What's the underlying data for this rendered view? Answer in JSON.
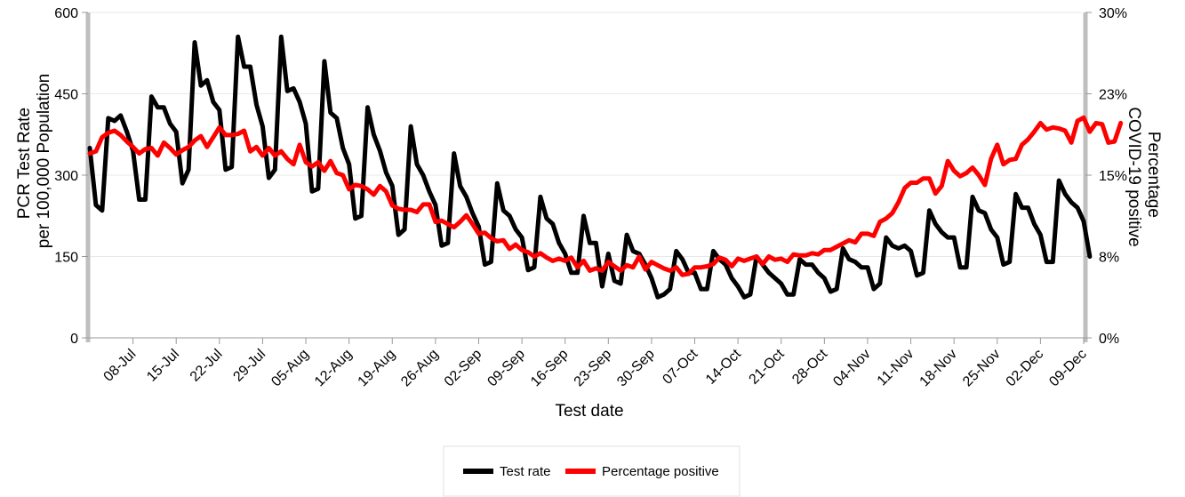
{
  "chart_data": {
    "type": "line",
    "title": "",
    "xlabel": "Test date",
    "ylabel_left": "PCR Test Rate per 100,000 Population",
    "ylabel_left_lines": [
      "PCR Test Rate",
      "per 100,000 Population"
    ],
    "ylabel_right": "Percentage COVID-19 positive",
    "ylabel_right_lines": [
      "Percentage",
      "COVID-19 positive"
    ],
    "ylim_left": [
      0,
      600
    ],
    "ylim_right": [
      0,
      30
    ],
    "yticks_left": [
      0,
      150,
      300,
      450,
      600
    ],
    "yticks_left_labels": [
      "0",
      "150",
      "300",
      "450",
      "600"
    ],
    "yticks_right": [
      0,
      7.5,
      15,
      22.5,
      30
    ],
    "yticks_right_labels": [
      "0%",
      "8%",
      "15%",
      "23%",
      "30%"
    ],
    "x_start": "2020-07-01",
    "x_end": "2020-12-09",
    "xticks": [
      "2020-07-08",
      "2020-07-15",
      "2020-07-22",
      "2020-07-29",
      "2020-08-05",
      "2020-08-12",
      "2020-08-19",
      "2020-08-26",
      "2020-09-02",
      "2020-09-09",
      "2020-09-16",
      "2020-09-23",
      "2020-09-30",
      "2020-10-07",
      "2020-10-14",
      "2020-10-21",
      "2020-10-28",
      "2020-11-04",
      "2020-11-11",
      "2020-11-18",
      "2020-11-25",
      "2020-12-02",
      "2020-12-09"
    ],
    "xtick_labels": [
      "08-Jul",
      "15-Jul",
      "22-Jul",
      "29-Jul",
      "05-Aug",
      "12-Aug",
      "19-Aug",
      "26-Aug",
      "02-Sep",
      "09-Sep",
      "16-Sep",
      "23-Sep",
      "30-Sep",
      "07-Oct",
      "14-Oct",
      "21-Oct",
      "28-Oct",
      "04-Nov",
      "11-Nov",
      "18-Nov",
      "25-Nov",
      "02-Dec",
      "09-Dec"
    ],
    "grid": "horizontal",
    "legend_position": "bottom",
    "series": [
      {
        "name": "Test rate",
        "axis": "left",
        "color": "#000000",
        "values": [
          350,
          245,
          235,
          405,
          400,
          410,
          380,
          345,
          255,
          255,
          445,
          425,
          425,
          395,
          380,
          285,
          310,
          545,
          465,
          475,
          435,
          420,
          310,
          315,
          555,
          500,
          500,
          430,
          390,
          295,
          310,
          555,
          455,
          460,
          435,
          395,
          270,
          275,
          510,
          415,
          405,
          350,
          320,
          220,
          225,
          425,
          375,
          345,
          305,
          280,
          190,
          200,
          390,
          320,
          300,
          270,
          245,
          170,
          175,
          340,
          280,
          260,
          230,
          205,
          135,
          140,
          285,
          235,
          225,
          200,
          185,
          125,
          130,
          260,
          220,
          210,
          175,
          155,
          120,
          120,
          225,
          175,
          175,
          95,
          155,
          105,
          100,
          190,
          160,
          155,
          135,
          110,
          75,
          80,
          90,
          160,
          145,
          120,
          120,
          90,
          90,
          160,
          145,
          135,
          110,
          95,
          75,
          80,
          150,
          135,
          120,
          110,
          100,
          80,
          80,
          145,
          135,
          135,
          120,
          110,
          85,
          90,
          165,
          145,
          140,
          130,
          130,
          90,
          100,
          185,
          170,
          165,
          170,
          160,
          115,
          120,
          235,
          210,
          195,
          185,
          185,
          130,
          130,
          260,
          235,
          230,
          200,
          185,
          135,
          140,
          265,
          240,
          240,
          210,
          190,
          140,
          140,
          290,
          265,
          250,
          240,
          215,
          150
        ]
      },
      {
        "name": "Percentage positive",
        "axis": "right",
        "color": "#ff0000",
        "values": [
          17.0,
          17.2,
          18.5,
          18.9,
          19.1,
          18.7,
          18.1,
          17.6,
          17.0,
          17.4,
          17.5,
          16.8,
          18.0,
          17.5,
          16.9,
          17.3,
          17.6,
          18.2,
          18.6,
          17.6,
          18.5,
          19.4,
          18.7,
          18.7,
          18.8,
          19.1,
          17.2,
          17.6,
          16.8,
          17.5,
          16.8,
          17.2,
          16.5,
          16.0,
          17.8,
          16.2,
          15.8,
          16.2,
          15.4,
          16.3,
          15.2,
          15.0,
          13.7,
          14.1,
          14.0,
          13.7,
          13.2,
          14.0,
          13.5,
          12.2,
          11.9,
          11.8,
          11.8,
          11.6,
          12.3,
          12.3,
          10.7,
          10.8,
          10.5,
          10.2,
          10.7,
          11.3,
          10.5,
          9.6,
          9.7,
          9.2,
          8.9,
          9.0,
          8.2,
          8.6,
          8.1,
          7.9,
          7.5,
          7.8,
          7.4,
          7.1,
          7.3,
          7.1,
          7.4,
          6.5,
          7.1,
          6.2,
          6.4,
          6.2,
          7.0,
          6.6,
          6.2,
          6.7,
          6.5,
          7.5,
          6.3,
          7.0,
          6.7,
          6.4,
          6.2,
          6.5,
          5.8,
          5.9,
          6.5,
          6.5,
          6.6,
          6.8,
          7.4,
          7.2,
          6.6,
          7.3,
          7.1,
          7.3,
          7.5,
          6.8,
          7.5,
          7.2,
          7.3,
          7.0,
          7.7,
          7.6,
          7.6,
          7.8,
          7.7,
          8.1,
          8.1,
          8.4,
          8.7,
          9.0,
          8.8,
          9.6,
          9.6,
          9.4,
          10.7,
          11.0,
          11.5,
          12.5,
          13.8,
          14.3,
          14.3,
          14.7,
          14.7,
          13.3,
          14.0,
          16.3,
          15.4,
          14.9,
          15.2,
          15.7,
          15.0,
          14.1,
          16.5,
          17.8,
          16.0,
          16.4,
          16.5,
          17.8,
          18.3,
          19.0,
          19.8,
          19.2,
          19.4,
          19.3,
          19.1,
          18.0,
          20.0,
          20.3,
          19.0,
          19.8,
          19.7,
          18.0,
          18.1,
          19.8
        ]
      }
    ]
  }
}
